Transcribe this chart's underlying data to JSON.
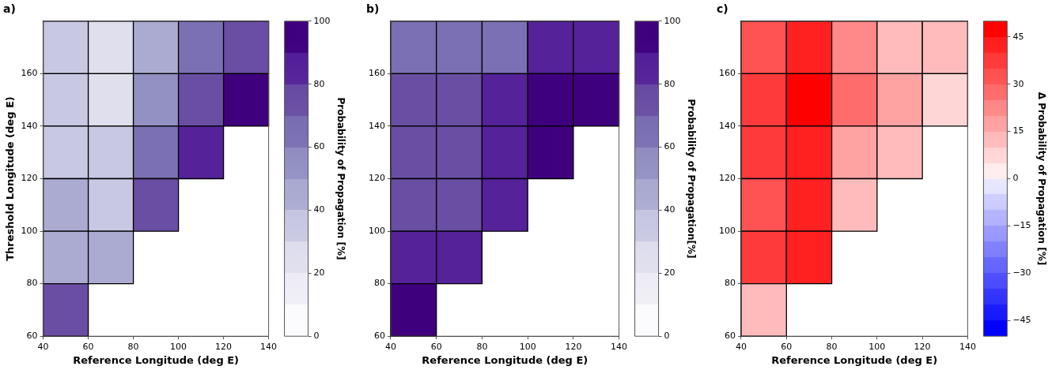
{
  "chart_data": [
    {
      "type": "heatmap",
      "title": "a)",
      "xlabel": "Reference Longitude (deg E)",
      "ylabel": "Threshold Longitude (deg E)",
      "clabel": "Probability of Propagation [%]",
      "xlim": [
        40,
        140
      ],
      "xticks": [
        40,
        60,
        80,
        100,
        120,
        140
      ],
      "ylim": [
        60,
        180
      ],
      "yticks": [
        60,
        80,
        100,
        120,
        140,
        160
      ],
      "clim": [
        0,
        100
      ],
      "cticks": [
        0,
        20,
        40,
        60,
        80,
        100
      ],
      "colors": [
        "#fcfbfd",
        "#efedf5",
        "#e0dfee",
        "#c8c8e3",
        "#ababd2",
        "#9390c3",
        "#7b70b3",
        "#6a4ea3",
        "#55229a",
        "#3f007d"
      ],
      "cells": [
        [
          35,
          25,
          45,
          65,
          75
        ],
        [
          35,
          25,
          55,
          75,
          95
        ],
        [
          35,
          35,
          65,
          85,
          null
        ],
        [
          45,
          35,
          75,
          null,
          null
        ],
        [
          45,
          45,
          null,
          null,
          null
        ],
        [
          75,
          null,
          null,
          null,
          null
        ]
      ]
    },
    {
      "type": "heatmap",
      "title": "b)",
      "xlabel": "Reference Longitude (deg E)",
      "clabel": "Probability of Propagation[%]",
      "xlim": [
        40,
        140
      ],
      "xticks": [
        40,
        60,
        80,
        100,
        120,
        140
      ],
      "ylim": [
        60,
        180
      ],
      "yticks": [
        60,
        80,
        100,
        120,
        140,
        160
      ],
      "clim": [
        0,
        100
      ],
      "cticks": [
        0,
        20,
        40,
        60,
        80,
        100
      ],
      "colors": [
        "#fcfbfd",
        "#efedf5",
        "#e0dfee",
        "#c8c8e3",
        "#ababd2",
        "#9390c3",
        "#7b70b3",
        "#6a4ea3",
        "#55229a",
        "#3f007d"
      ],
      "cells": [
        [
          65,
          65,
          65,
          85,
          85
        ],
        [
          75,
          75,
          85,
          95,
          95
        ],
        [
          75,
          75,
          85,
          95,
          null
        ],
        [
          75,
          75,
          85,
          null,
          null
        ],
        [
          85,
          85,
          null,
          null,
          null
        ],
        [
          95,
          null,
          null,
          null,
          null
        ]
      ]
    },
    {
      "type": "heatmap",
      "title": "c)",
      "xlabel": "Reference Longitude (deg E)",
      "clabel": "Δ Probability of Propagation [%]",
      "xlim": [
        40,
        140
      ],
      "xticks": [
        40,
        60,
        80,
        100,
        120,
        140
      ],
      "ylim": [
        60,
        180
      ],
      "yticks": [
        60,
        80,
        100,
        120,
        140,
        160
      ],
      "clim": [
        -50,
        50
      ],
      "cticks": [
        -45,
        -30,
        -15,
        0,
        15,
        30,
        45
      ],
      "colors": [
        "#0000ff",
        "#1a1aff",
        "#3333ff",
        "#4d4dff",
        "#6666ff",
        "#8080ff",
        "#9999ff",
        "#b3b3ff",
        "#ccccff",
        "#e6e6ff",
        "#ffeeee",
        "#ffd6d6",
        "#ffbbbb",
        "#ffa2a2",
        "#ff8888",
        "#ff6c6c",
        "#ff5252",
        "#ff3a3a",
        "#ff2020",
        "#ff0000"
      ],
      "cells": [
        [
          32.5,
          42.5,
          22.5,
          12.5,
          12.5
        ],
        [
          37.5,
          47.5,
          27.5,
          17.5,
          7.5
        ],
        [
          37.5,
          42.5,
          17.5,
          12.5,
          null
        ],
        [
          32.5,
          42.5,
          12.5,
          null,
          null
        ],
        [
          37.5,
          42.5,
          null,
          null,
          null
        ],
        [
          12.5,
          null,
          null,
          null,
          null
        ]
      ]
    }
  ]
}
